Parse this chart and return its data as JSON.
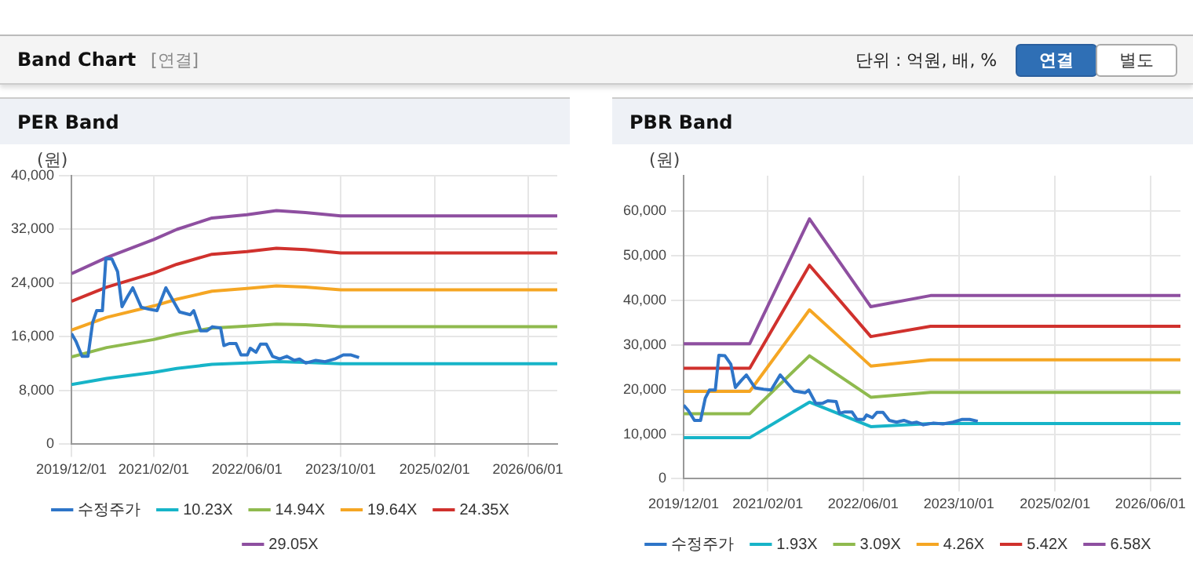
{
  "chart_data": [
    {
      "type": "line",
      "title": "PER Band",
      "ylabel": "(원)",
      "annotations": [
        "Band Chart",
        "[연결]",
        "단위 : 억원, 배, %",
        "연결",
        "별도"
      ],
      "x": [
        "2019-12-01",
        "2020-06-01",
        "2021-02-01",
        "2021-06-01",
        "2021-12-01",
        "2022-06-01",
        "2022-11-01",
        "2023-04-01",
        "2023-10-01",
        "2026-11-01"
      ],
      "xlim": [
        "2019-12-01",
        "2026-11-01"
      ],
      "xticks": [
        {
          "value": "2019-12-01",
          "label": "2019/12/01"
        },
        {
          "value": "2021-02-01",
          "label": "2021/02/01"
        },
        {
          "value": "2022-06-01",
          "label": "2022/06/01"
        },
        {
          "value": "2023-10-01",
          "label": "2023/10/01"
        },
        {
          "value": "2025-02-01",
          "label": "2025/02/01"
        },
        {
          "value": "2026-06-01",
          "label": "2026/06/01"
        }
      ],
      "ylim": [
        0,
        40000
      ],
      "yticks": [
        0,
        {
          "value": 8000,
          "label": "8,000"
        },
        {
          "value": 16000,
          "label": "16,000"
        },
        {
          "value": 24000,
          "label": "24,000"
        },
        {
          "value": 32000,
          "label": "32,000"
        },
        {
          "value": 40000,
          "label": "40,000"
        }
      ],
      "grid": true,
      "legend": "bottom",
      "marker": "none",
      "series": [
        {
          "name": "수정주가",
          "color": "#2e75c8",
          "x": [
            "2019-12-01",
            "2019-12-25",
            "2020-01-25",
            "2020-02-25",
            "2020-03-20",
            "2020-04-10",
            "2020-05-10",
            "2020-05-28",
            "2020-06-28",
            "2020-07-28",
            "2020-08-20",
            "2020-09-18",
            "2020-10-15",
            "2020-11-28",
            "2021-01-10",
            "2021-02-18",
            "2021-04-05",
            "2021-06-15",
            "2021-08-10",
            "2021-08-28",
            "2021-10-03",
            "2021-11-05",
            "2021-12-03",
            "2022-01-15",
            "2022-02-01",
            "2022-03-01",
            "2022-04-05",
            "2022-05-01",
            "2022-06-03",
            "2022-06-18",
            "2022-07-18",
            "2022-08-10",
            "2022-09-10",
            "2022-10-12",
            "2022-11-18",
            "2022-12-25",
            "2023-02-03",
            "2023-03-01",
            "2023-04-03",
            "2023-05-25",
            "2023-07-12",
            "2023-09-01",
            "2023-10-15",
            "2023-11-25",
            "2024-01-05"
          ],
          "values": [
            16500,
            15300,
            13100,
            13100,
            18100,
            19900,
            19900,
            27700,
            27600,
            25700,
            20500,
            22000,
            23300,
            20400,
            20100,
            19900,
            23300,
            19700,
            19300,
            19900,
            16900,
            16900,
            17500,
            17300,
            14700,
            15000,
            15000,
            13300,
            13300,
            14300,
            13700,
            14900,
            14900,
            13100,
            12700,
            13100,
            12500,
            12700,
            12100,
            12500,
            12300,
            12700,
            13300,
            13300,
            12900
          ]
        },
        {
          "name": "10.23X",
          "color": "#17b4c8",
          "values": [
            8900,
            9800,
            10700,
            11300,
            11900,
            12100,
            12300,
            12200,
            12000,
            12000
          ]
        },
        {
          "name": "14.94X",
          "color": "#8fba4e",
          "values": [
            13000,
            14400,
            15600,
            16400,
            17300,
            17600,
            17900,
            17800,
            17500,
            17500
          ]
        },
        {
          "name": "19.64X",
          "color": "#f5a623",
          "values": [
            17000,
            18900,
            20600,
            21600,
            22800,
            23200,
            23600,
            23400,
            23000,
            23000
          ]
        },
        {
          "name": "24.35X",
          "color": "#d0312d",
          "values": [
            21300,
            23400,
            25500,
            26800,
            28300,
            28700,
            29200,
            29000,
            28500,
            28500
          ]
        },
        {
          "name": "29.05X",
          "color": "#8e4fa0",
          "values": [
            25400,
            27800,
            30500,
            32000,
            33700,
            34200,
            34800,
            34500,
            34000,
            34000
          ]
        }
      ]
    },
    {
      "type": "line",
      "title": "PBR Band",
      "ylabel": "(원)",
      "x": [
        "2019-12-01",
        "2020-11-01",
        "2021-09-01",
        "2022-07-10",
        "2023-05-10",
        "2026-11-01"
      ],
      "xlim": [
        "2019-12-01",
        "2026-11-01"
      ],
      "xticks": [
        {
          "value": "2019-12-01",
          "label": "2019/12/01"
        },
        {
          "value": "2021-02-01",
          "label": "2021/02/01"
        },
        {
          "value": "2022-06-01",
          "label": "2022/06/01"
        },
        {
          "value": "2023-10-01",
          "label": "2023/10/01"
        },
        {
          "value": "2025-02-01",
          "label": "2025/02/01"
        },
        {
          "value": "2026-06-01",
          "label": "2026/06/01"
        }
      ],
      "ylim": [
        0,
        68000
      ],
      "yticks": [
        0,
        {
          "value": 10000,
          "label": "10,000"
        },
        {
          "value": 20000,
          "label": "20,000"
        },
        {
          "value": 30000,
          "label": "30,000"
        },
        {
          "value": 40000,
          "label": "40,000"
        },
        {
          "value": 50000,
          "label": "50,000"
        },
        {
          "value": 60000,
          "label": "60,000"
        }
      ],
      "grid": true,
      "legend": "bottom",
      "marker": "none",
      "series": [
        {
          "name": "수정주가",
          "color": "#2e75c8",
          "x": [
            "2019-12-01",
            "2019-12-25",
            "2020-01-25",
            "2020-02-25",
            "2020-03-20",
            "2020-04-10",
            "2020-05-10",
            "2020-05-28",
            "2020-06-28",
            "2020-07-28",
            "2020-08-20",
            "2020-09-18",
            "2020-10-15",
            "2020-11-28",
            "2021-01-10",
            "2021-02-18",
            "2021-04-05",
            "2021-06-15",
            "2021-08-10",
            "2021-08-28",
            "2021-10-03",
            "2021-11-05",
            "2021-12-03",
            "2022-01-15",
            "2022-02-01",
            "2022-03-01",
            "2022-04-05",
            "2022-05-01",
            "2022-06-03",
            "2022-06-18",
            "2022-07-18",
            "2022-08-10",
            "2022-09-10",
            "2022-10-12",
            "2022-11-18",
            "2022-12-25",
            "2023-02-03",
            "2023-03-01",
            "2023-04-03",
            "2023-05-25",
            "2023-07-12",
            "2023-09-01",
            "2023-10-15",
            "2023-11-25",
            "2024-01-05"
          ],
          "values": [
            16500,
            15300,
            13100,
            13100,
            18100,
            19900,
            19900,
            27700,
            27600,
            25700,
            20500,
            22000,
            23300,
            20400,
            20100,
            19900,
            23300,
            19700,
            19300,
            19900,
            16900,
            16900,
            17500,
            17300,
            14700,
            15000,
            15000,
            13300,
            13300,
            14300,
            13700,
            14900,
            14900,
            13100,
            12700,
            13100,
            12500,
            12700,
            12100,
            12500,
            12300,
            12700,
            13300,
            13300,
            12900
          ]
        },
        {
          "name": "1.93X",
          "color": "#17b4c8",
          "values": [
            9200,
            9200,
            17200,
            11700,
            12400,
            12400
          ]
        },
        {
          "name": "3.09X",
          "color": "#8fba4e",
          "values": [
            14600,
            14600,
            27600,
            18300,
            19400,
            19400
          ]
        },
        {
          "name": "4.26X",
          "color": "#f5a623",
          "values": [
            19600,
            19600,
            37900,
            25300,
            26700,
            26700
          ]
        },
        {
          "name": "5.42X",
          "color": "#d0312d",
          "values": [
            24800,
            24800,
            47900,
            31900,
            34200,
            34200
          ]
        },
        {
          "name": "6.58X",
          "color": "#8e4fa0",
          "values": [
            30300,
            30300,
            58300,
            38600,
            41100,
            41100
          ]
        }
      ]
    }
  ]
}
